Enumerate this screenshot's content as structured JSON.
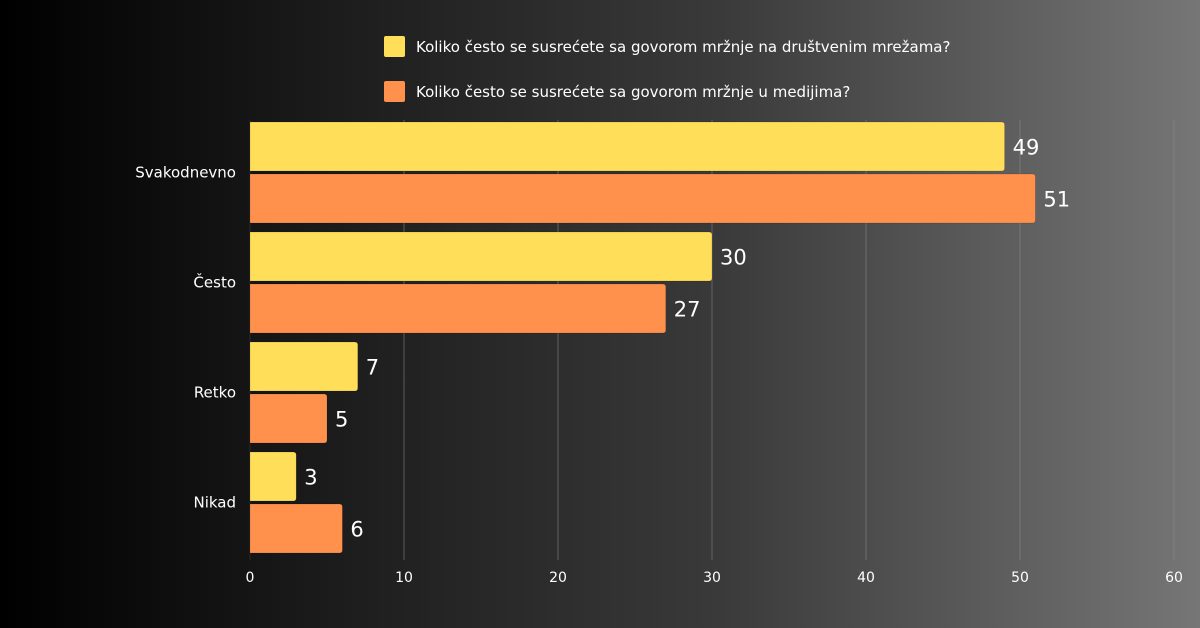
{
  "chart_data": {
    "type": "bar",
    "orientation": "horizontal",
    "title": "",
    "xlabel": "",
    "ylabel": "",
    "categories": [
      "Svakodnevno",
      "Često",
      "Retko",
      "Nikad"
    ],
    "series": [
      {
        "name": "Koliko često se susrećete sa govorom mržnje na društvenim mrežama?",
        "color": "#FFDE59",
        "values": [
          49,
          30,
          7,
          3
        ]
      },
      {
        "name": "Koliko često se susrećete sa govorom mržnje u medijima?",
        "color": "#FF914D",
        "values": [
          51,
          27,
          5,
          6
        ]
      }
    ],
    "xlim": [
      0,
      60
    ],
    "xticks": [
      0,
      10,
      20,
      30,
      40,
      50,
      60
    ],
    "grid": true,
    "legend_position": "top",
    "data_labels": true
  }
}
